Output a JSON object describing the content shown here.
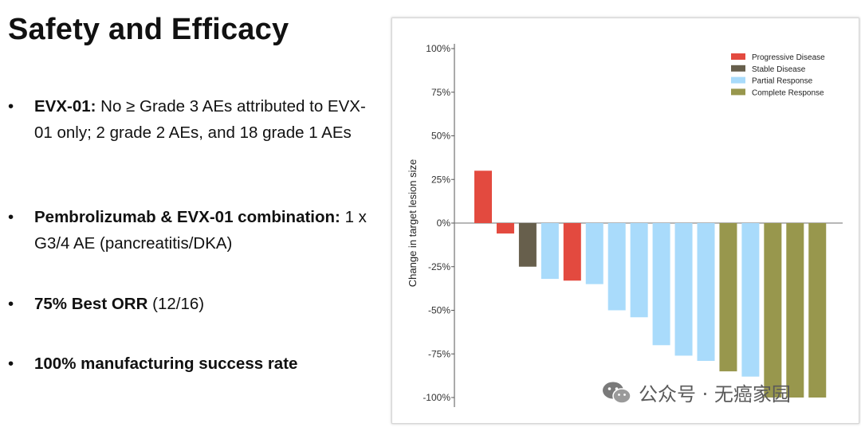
{
  "slide": {
    "title": "Safety and Efficacy",
    "bullets": [
      {
        "bold": "EVX-01:",
        "text": " No ≥ Grade 3 AEs attributed to EVX-01 only; 2 grade 2 AEs, and 18 grade 1 AEs"
      },
      {
        "bold": "Pembrolizumab & EVX-01 combination:",
        "text": " 1 x G3/4 AE (pancreatitis/DKA)"
      },
      {
        "bold": "75% Best ORR",
        "text": " (12/16)"
      },
      {
        "bold": "100% manufacturing success rate",
        "text": ""
      }
    ]
  },
  "chart_data": {
    "type": "bar",
    "ylabel": "Change in target lesion size",
    "ylim": [
      -100,
      100
    ],
    "yticks": [
      100,
      75,
      50,
      25,
      0,
      -25,
      -50,
      -75,
      -100
    ],
    "ytick_labels": [
      "100%",
      "75%",
      "50%",
      "25%",
      "0%",
      "-25%",
      "-50%",
      "-75%",
      "-100%"
    ],
    "legend_position": "top-right",
    "legend": [
      {
        "label": "Progressive Disease",
        "color": "#e34a3f"
      },
      {
        "label": "Stable Disease",
        "color": "#675f4c"
      },
      {
        "label": "Partial Response",
        "color": "#a9dbfb"
      },
      {
        "label": "Complete Response",
        "color": "#98974d"
      }
    ],
    "bars": [
      {
        "value": 30,
        "category": "Progressive Disease"
      },
      {
        "value": -6,
        "category": "Progressive Disease"
      },
      {
        "value": -25,
        "category": "Stable Disease"
      },
      {
        "value": -32,
        "category": "Partial Response"
      },
      {
        "value": -33,
        "category": "Progressive Disease"
      },
      {
        "value": -35,
        "category": "Partial Response"
      },
      {
        "value": -50,
        "category": "Partial Response"
      },
      {
        "value": -54,
        "category": "Partial Response"
      },
      {
        "value": -70,
        "category": "Partial Response"
      },
      {
        "value": -76,
        "category": "Partial Response"
      },
      {
        "value": -79,
        "category": "Partial Response"
      },
      {
        "value": -85,
        "category": "Complete Response"
      },
      {
        "value": -88,
        "category": "Partial Response"
      },
      {
        "value": -100,
        "category": "Complete Response"
      },
      {
        "value": -100,
        "category": "Complete Response"
      },
      {
        "value": -100,
        "category": "Complete Response"
      }
    ]
  },
  "watermark": {
    "text": "公众号 · 无癌家园",
    "icon": "wechat-icon"
  }
}
